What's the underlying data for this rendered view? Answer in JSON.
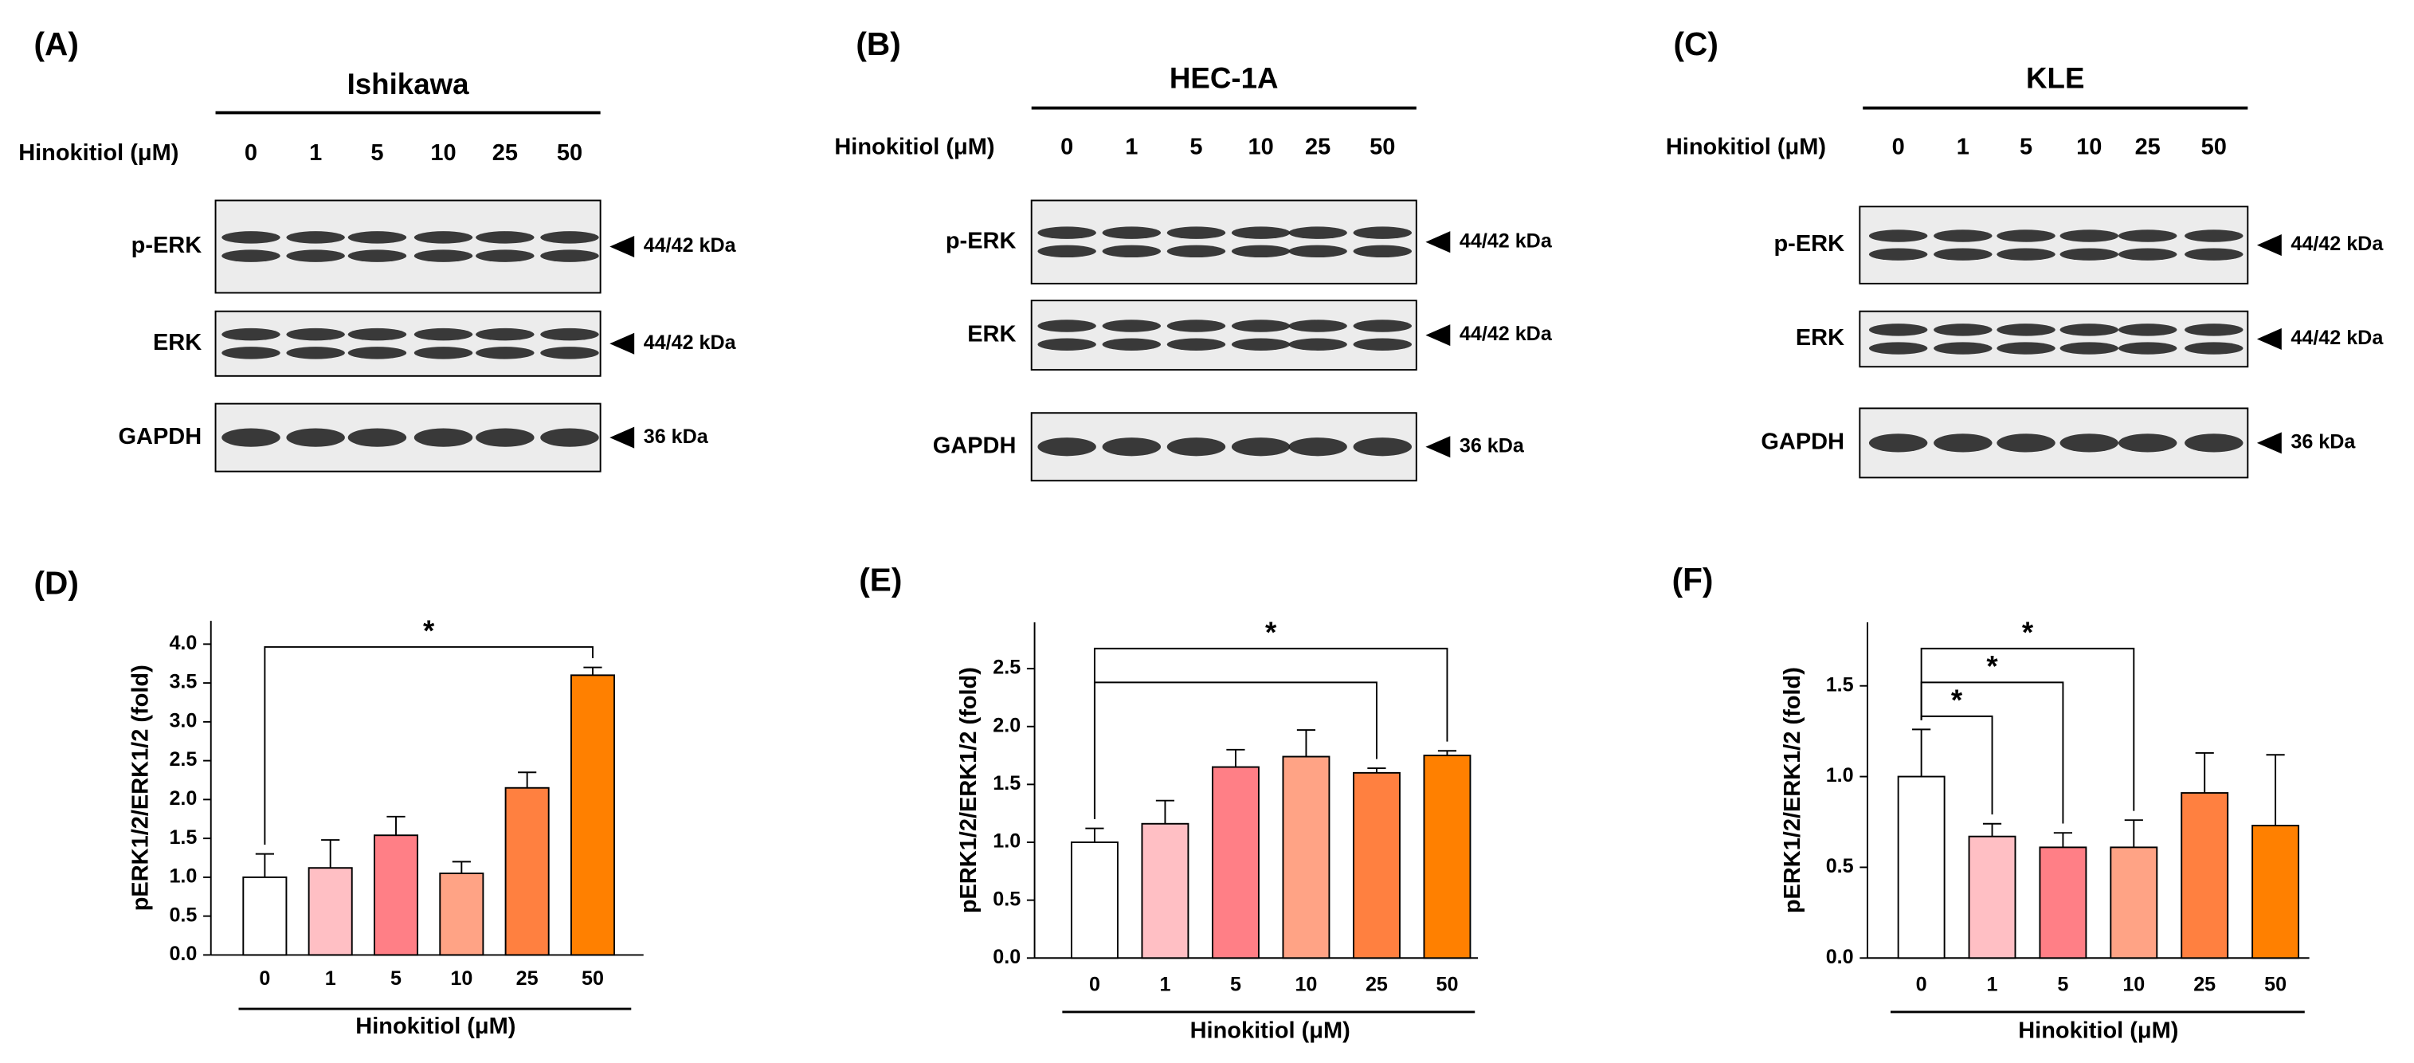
{
  "blots": [
    {
      "label": "(A)",
      "cell_line": "Ishikawa",
      "treatment_label": "Hinokitiol (μM)",
      "doses": [
        "0",
        "1",
        "5",
        "10",
        "25",
        "50"
      ],
      "rows": [
        {
          "protein": "p-ERK",
          "size": "44/42 kDa"
        },
        {
          "protein": "ERK",
          "size": "44/42 kDa"
        },
        {
          "protein": "GAPDH",
          "size": "36 kDa"
        }
      ]
    },
    {
      "label": "(B)",
      "cell_line": "HEC-1A",
      "treatment_label": "Hinokitiol (μM)",
      "doses": [
        "0",
        "1",
        "5",
        "10",
        "25",
        "50"
      ],
      "rows": [
        {
          "protein": "p-ERK",
          "size": "44/42 kDa"
        },
        {
          "protein": "ERK",
          "size": "44/42 kDa"
        },
        {
          "protein": "GAPDH",
          "size": "36 kDa"
        }
      ]
    },
    {
      "label": "(C)",
      "cell_line": "KLE",
      "treatment_label": "Hinokitiol (μM)",
      "doses": [
        "0",
        "1",
        "5",
        "10",
        "25",
        "50"
      ],
      "rows": [
        {
          "protein": "p-ERK",
          "size": "44/42 kDa"
        },
        {
          "protein": "ERK",
          "size": "44/42 kDa"
        },
        {
          "protein": "GAPDH",
          "size": "36 kDa"
        }
      ]
    }
  ],
  "chart_data": [
    {
      "type": "bar",
      "panel": "(D)",
      "xlabel": "Hinokitiol (μM)",
      "ylabel": "pERK1/2/ERK1/2 (fold)",
      "categories": [
        "0",
        "1",
        "5",
        "10",
        "25",
        "50"
      ],
      "values": [
        1.0,
        1.12,
        1.54,
        1.05,
        2.15,
        3.6
      ],
      "errors": [
        0.3,
        0.36,
        0.24,
        0.15,
        0.2,
        0.1
      ],
      "colors": [
        "#ffffff",
        "#ffbfc4",
        "#ff7f86",
        "#ffa385",
        "#ff8040",
        "#ff8000"
      ],
      "ylim": [
        0,
        4.3
      ],
      "yticks": [
        {
          "value": 0,
          "label": "0.0"
        },
        0.5,
        {
          "value": 1,
          "label": "1.0"
        },
        1.5,
        {
          "value": 2,
          "label": "2.0"
        },
        2.5,
        {
          "value": 3,
          "label": "3.0"
        },
        3.5,
        {
          "value": 4,
          "label": "4.0"
        }
      ],
      "brackets": [
        {
          "from": "0",
          "to": "50",
          "label": "*"
        }
      ]
    },
    {
      "type": "bar",
      "panel": "(E)",
      "xlabel": "Hinokitiol (μM)",
      "ylabel": "pERK1/2/ERK1/2 (fold)",
      "categories": [
        "0",
        "1",
        "5",
        "10",
        "25",
        "50"
      ],
      "values": [
        1.0,
        1.16,
        1.65,
        1.74,
        1.6,
        1.75
      ],
      "errors": [
        0.12,
        0.2,
        0.15,
        0.23,
        0.04,
        0.04
      ],
      "colors": [
        "#ffffff",
        "#ffbfc4",
        "#ff7f86",
        "#ffa385",
        "#ff8040",
        "#ff8000"
      ],
      "ylim": [
        0,
        2.9
      ],
      "yticks": [
        {
          "value": 0,
          "label": "0.0"
        },
        0.5,
        {
          "value": 1,
          "label": "1.0"
        },
        1.5,
        {
          "value": 2,
          "label": "2.0"
        },
        2.5
      ],
      "brackets": [
        {
          "from": "0",
          "to": "50",
          "label": "*"
        },
        {
          "from": "0",
          "to": "25"
        }
      ]
    },
    {
      "type": "bar",
      "panel": "(F)",
      "xlabel": "Hinokitiol (μM)",
      "ylabel": "pERK1/2/ERK1/2 (fold)",
      "categories": [
        "0",
        "1",
        "5",
        "10",
        "25",
        "50"
      ],
      "values": [
        1.0,
        0.67,
        0.61,
        0.61,
        0.91,
        0.73
      ],
      "errors": [
        0.26,
        0.07,
        0.08,
        0.15,
        0.22,
        0.39
      ],
      "colors": [
        "#ffffff",
        "#ffbfc4",
        "#ff7f86",
        "#ffa385",
        "#ff8040",
        "#ff8000"
      ],
      "ylim": [
        0,
        1.85
      ],
      "yticks": [
        {
          "value": 0,
          "label": "0.0"
        },
        0.5,
        {
          "value": 1,
          "label": "1.0"
        },
        1.5
      ],
      "brackets": [
        {
          "from": "0",
          "to": "10",
          "label": "*"
        },
        {
          "from": "0",
          "to": "5",
          "label": "*"
        },
        {
          "from": "0",
          "to": "1",
          "label": "*"
        }
      ]
    }
  ]
}
